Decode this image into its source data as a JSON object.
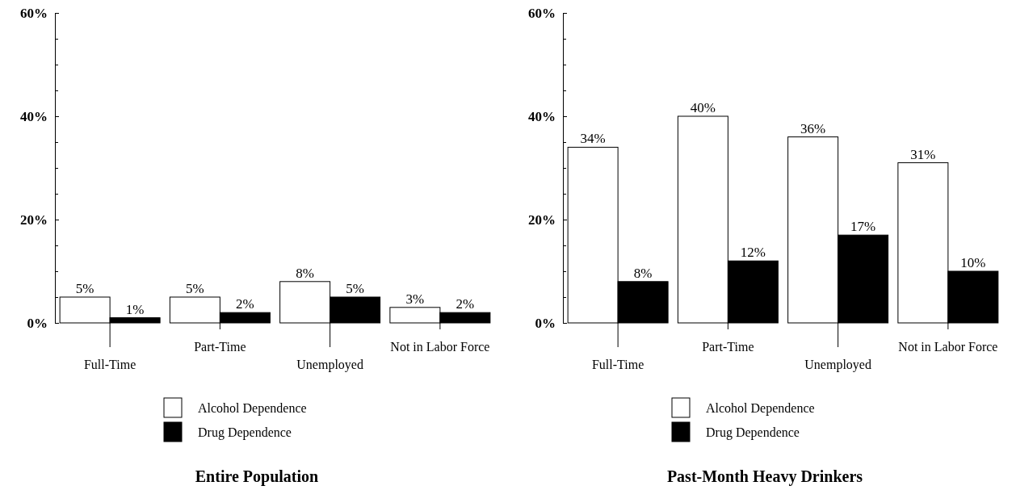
{
  "chart_data": [
    {
      "type": "bar",
      "title": "Entire Population",
      "categories": [
        "Full-Time",
        "Part-Time",
        "Unemployed",
        "Not in Labor Force"
      ],
      "series": [
        {
          "name": "Alcohol Dependence",
          "color": "#ffffff",
          "values": [
            5,
            5,
            8,
            3
          ]
        },
        {
          "name": "Drug Dependence",
          "color": "#000000",
          "values": [
            1,
            2,
            5,
            2
          ]
        }
      ],
      "ylim": [
        0,
        60
      ],
      "yticks": [
        {
          "value": 0,
          "label": "0%"
        },
        {
          "value": 5,
          "label": null
        },
        {
          "value": 10,
          "label": null
        },
        {
          "value": 15,
          "label": null
        },
        {
          "value": 20,
          "label": "20%"
        },
        {
          "value": 25,
          "label": null
        },
        {
          "value": 30,
          "label": null
        },
        {
          "value": 35,
          "label": null
        },
        {
          "value": 40,
          "label": "40%"
        },
        {
          "value": 45,
          "label": null
        },
        {
          "value": 50,
          "label": null
        },
        {
          "value": 55,
          "label": null
        },
        {
          "value": 60,
          "label": "60%"
        }
      ],
      "value_labels": [
        [
          "5%",
          "5%",
          "8%",
          "3%"
        ],
        [
          "1%",
          "2%",
          "5%",
          "2%"
        ]
      ],
      "legend": "bottom",
      "grid": false
    },
    {
      "type": "bar",
      "title": "Past-Month Heavy Drinkers",
      "categories": [
        "Full-Time",
        "Part-Time",
        "Unemployed",
        "Not in Labor Force"
      ],
      "series": [
        {
          "name": "Alcohol Dependence",
          "color": "#ffffff",
          "values": [
            34,
            40,
            36,
            31
          ]
        },
        {
          "name": "Drug Dependence",
          "color": "#000000",
          "values": [
            8,
            12,
            17,
            10
          ]
        }
      ],
      "ylim": [
        0,
        60
      ],
      "yticks": [
        {
          "value": 0,
          "label": "0%"
        },
        {
          "value": 5,
          "label": null
        },
        {
          "value": 10,
          "label": null
        },
        {
          "value": 15,
          "label": null
        },
        {
          "value": 20,
          "label": "20%"
        },
        {
          "value": 25,
          "label": null
        },
        {
          "value": 30,
          "label": null
        },
        {
          "value": 35,
          "label": null
        },
        {
          "value": 40,
          "label": "40%"
        },
        {
          "value": 45,
          "label": null
        },
        {
          "value": 50,
          "label": null
        },
        {
          "value": 55,
          "label": null
        },
        {
          "value": 60,
          "label": "60%"
        }
      ],
      "value_labels": [
        [
          "34%",
          "40%",
          "36%",
          "31%"
        ],
        [
          "8%",
          "12%",
          "17%",
          "10%"
        ]
      ],
      "legend": "bottom",
      "grid": false
    }
  ]
}
